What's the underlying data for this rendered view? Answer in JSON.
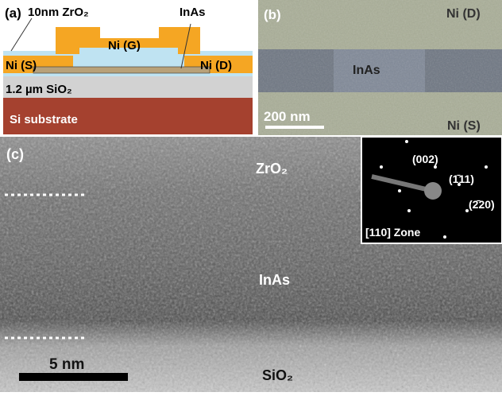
{
  "panel_a": {
    "label": "(a)",
    "zro2": "10nm ZrO₂",
    "inas": "InAs",
    "gate": "Ni (G)",
    "source": "Ni (S)",
    "drain": "Ni (D)",
    "oxide": "1.2 µm SiO₂",
    "substrate": "Si substrate"
  },
  "panel_b": {
    "label": "(b)",
    "drain": "Ni (D)",
    "inas": "InAs",
    "scale": "200 nm",
    "source": "Ni (S)"
  },
  "panel_c": {
    "label": "(c)",
    "top": "ZrO₂",
    "middle": "InAs",
    "bottom": "SiO₂",
    "scale": "5 nm",
    "inset": {
      "spots": [
        "(002)",
        "(1̄11)",
        "(2̄20)"
      ],
      "zone": "[110] Zone"
    }
  }
}
